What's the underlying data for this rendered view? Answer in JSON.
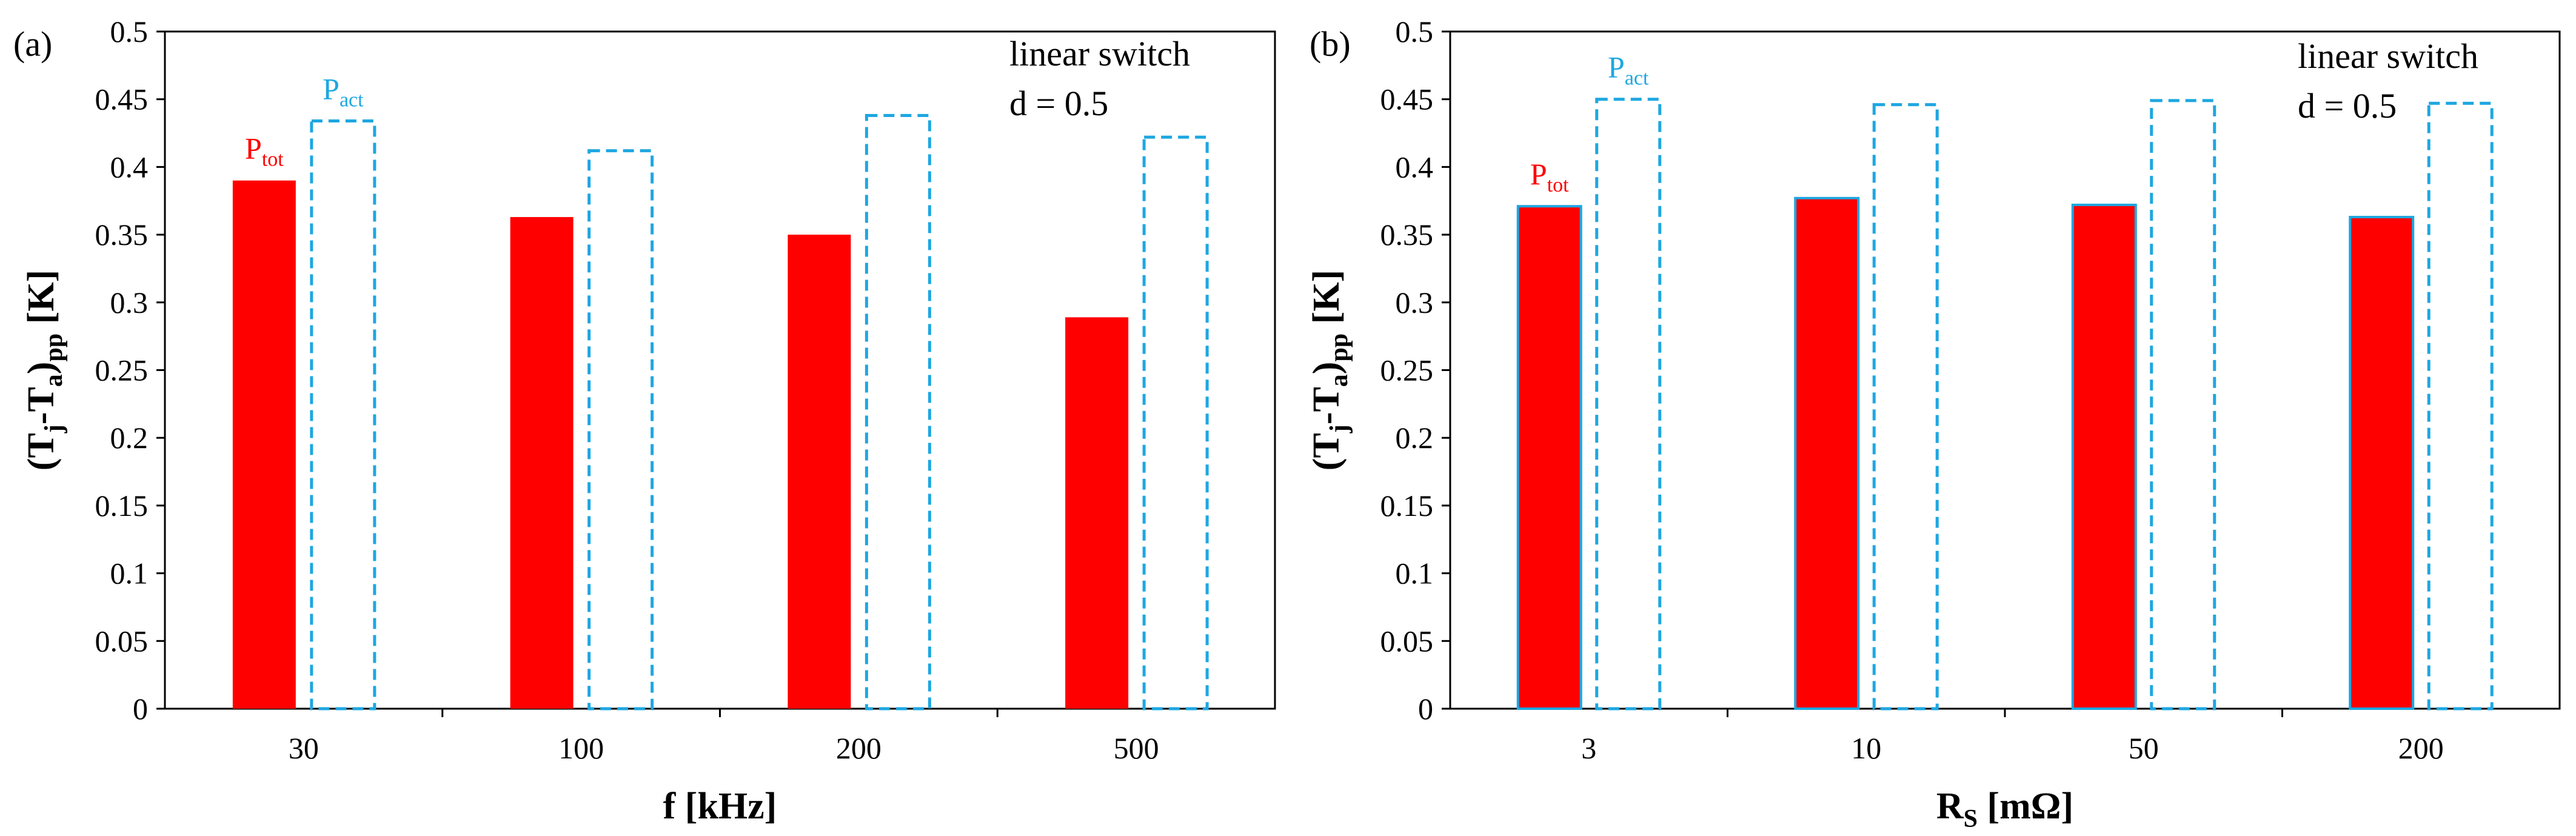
{
  "chart_data": [
    {
      "type": "bar",
      "panel_label": "(a)",
      "categories": [
        "30",
        "100",
        "200",
        "500"
      ],
      "series": [
        {
          "name": "P_tot",
          "label_main": "P",
          "label_sub": "tot",
          "values": [
            0.39,
            0.363,
            0.35,
            0.289
          ],
          "color": "#ff0000",
          "style": "solid"
        },
        {
          "name": "P_act",
          "label_main": "P",
          "label_sub": "act",
          "values": [
            0.434,
            0.412,
            0.438,
            0.422
          ],
          "color": "#1ea7e1",
          "style": "dashed"
        }
      ],
      "xlabel": "f [kHz]",
      "ylabel": {
        "main": "(T",
        "sub1": "j",
        "mid": "-T",
        "sub2": "a",
        "close": ")",
        "sub3": "pp",
        "tail": " [K]"
      },
      "ylim": [
        0,
        0.5
      ],
      "yticks": [
        "0",
        "0.05",
        "0.1",
        "0.15",
        "0.2",
        "0.25",
        "0.3",
        "0.35",
        "0.4",
        "0.45",
        "0.5"
      ],
      "annotation": [
        "linear switch",
        "d = 0.5"
      ]
    },
    {
      "type": "bar",
      "panel_label": "(b)",
      "categories": [
        "3",
        "10",
        "50",
        "200"
      ],
      "series": [
        {
          "name": "P_tot",
          "label_main": "P",
          "label_sub": "tot",
          "values": [
            0.371,
            0.377,
            0.372,
            0.363
          ],
          "color": "#ff0000",
          "style": "solid"
        },
        {
          "name": "P_act",
          "label_main": "P",
          "label_sub": "act",
          "values": [
            0.45,
            0.446,
            0.449,
            0.447
          ],
          "color": "#1ea7e1",
          "style": "dashed"
        }
      ],
      "xlabel": {
        "main": "R",
        "sub": "S",
        "tail": " [mΩ]"
      },
      "ylabel": {
        "main": "(T",
        "sub1": "j",
        "mid": "-T",
        "sub2": "a",
        "close": ")",
        "sub3": "pp",
        "tail": " [K]"
      },
      "ylim": [
        0,
        0.5
      ],
      "yticks": [
        "0",
        "0.05",
        "0.1",
        "0.15",
        "0.2",
        "0.25",
        "0.3",
        "0.35",
        "0.4",
        "0.45",
        "0.5"
      ],
      "annotation": [
        "linear switch",
        "d = 0.5"
      ]
    }
  ]
}
